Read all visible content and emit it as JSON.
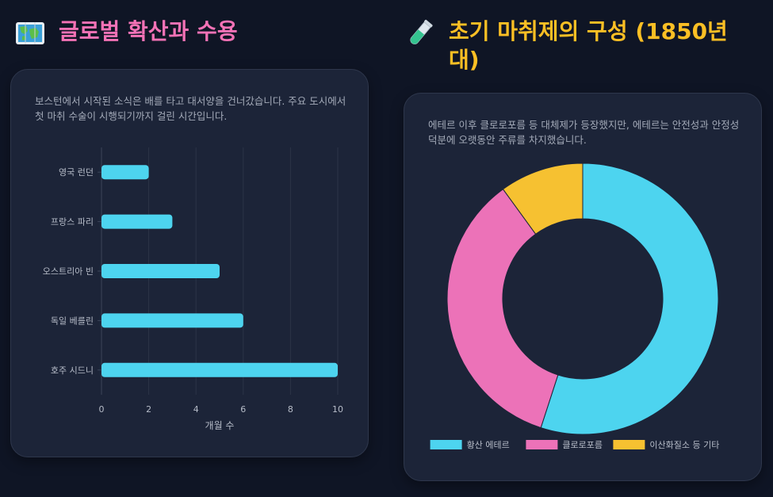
{
  "left": {
    "title": "글로벌 확산과 수용",
    "title_color": "#f472b6",
    "icon": "world-map-icon",
    "description": "보스턴에서 시작된 소식은 배를 타고 대서양을 건너갔습니다. 주요 도시에서 첫 마취 수술이 시행되기까지 걸린 시간입니다."
  },
  "right": {
    "title": "초기 마취제의 구성 (1850년대)",
    "title_color": "#fbbf24",
    "icon": "test-tube-icon",
    "description": "에테르 이후 클로로포름 등 대체제가 등장했지만, 에테르는 안전성과 안정성 덕분에 오랫동안 주류를 차지했습니다."
  },
  "chart_data": [
    {
      "type": "bar",
      "orientation": "horizontal",
      "categories": [
        "영국 런던",
        "프랑스 파리",
        "오스트리아 빈",
        "독일 베를린",
        "호주 시드니"
      ],
      "values": [
        2,
        3,
        5,
        6,
        10
      ],
      "xlabel": "개월 수",
      "ylabel": "",
      "xlim": [
        0,
        10
      ],
      "xticks": [
        "0",
        "2",
        "4",
        "6",
        "8",
        "10"
      ],
      "grid": true,
      "color": "#4dd4ef"
    },
    {
      "type": "pie",
      "variant": "doughnut",
      "categories": [
        "황산 에테르",
        "클로로포름",
        "이산화질소 등 기타"
      ],
      "values": [
        55,
        35,
        10
      ],
      "colors": [
        "#4dd4ef",
        "#ec72b8",
        "#f6c131"
      ],
      "legend": "bottom"
    }
  ]
}
